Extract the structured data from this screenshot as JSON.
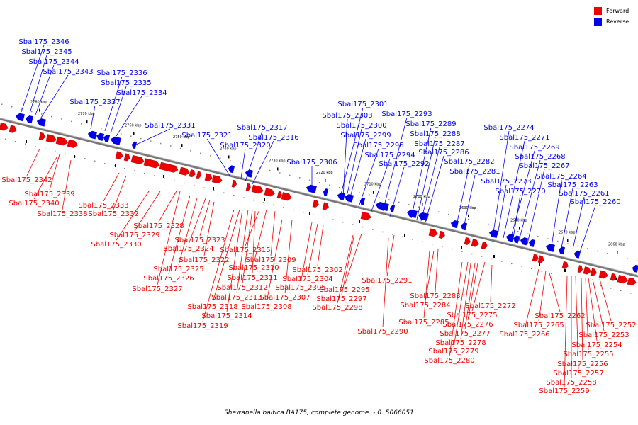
{
  "legend": {
    "forward": {
      "label": "Forward",
      "color": "#ee0000"
    },
    "reverse": {
      "label": "Reverse",
      "color": "#0000ee"
    }
  },
  "caption": "Shewanella baltica BA175, complete genome. - 0..5066051",
  "ticks": [
    "2780 kbp",
    "2770 kbp",
    "2760 kbp",
    "2750 kbp",
    "2740 kbp",
    "2730 kbp",
    "2720 kbp",
    "2710 kbp",
    "2700 kbp",
    "2690 kbp",
    "2680 kbp",
    "2670 kbp",
    "2660 kbp"
  ],
  "reverse_genes": [
    "Sbal175_2346",
    "Sbal175_2345",
    "Sbal175_2344",
    "Sbal175_2343",
    "Sbal175_2336",
    "Sbal175_2335",
    "Sbal175_2337",
    "Sbal175_2334",
    "Sbal175_2331",
    "Sbal175_2321",
    "Sbal175_2317",
    "Sbal175_2316",
    "Sbal175_2320",
    "Sbal175_2301",
    "Sbal175_2303",
    "Sbal175_2300",
    "Sbal175_2299",
    "Sbal175_2296",
    "Sbal175_2294",
    "Sbal175_2292",
    "Sbal175_2306",
    "Sbal175_2293",
    "Sbal175_2289",
    "Sbal175_2288",
    "Sbal175_2287",
    "Sbal175_2286",
    "Sbal175_2282",
    "Sbal175_2281",
    "Sbal175_2274",
    "Sbal175_2271",
    "Sbal175_2269",
    "Sbal175_2268",
    "Sbal175_2267",
    "Sbal175_2264",
    "Sbal175_2263",
    "Sbal175_2261",
    "Sbal175_2260",
    "Sbal175_2273",
    "Sbal175_2270"
  ],
  "forward_genes": [
    "Sbal175_2342",
    "Sbal175_2339",
    "Sbal175_2340",
    "Sbal175_2338",
    "Sbal175_2333",
    "Sbal175_2332",
    "Sbal175_2328",
    "Sbal175_2329",
    "Sbal175_2330",
    "Sbal175_2323",
    "Sbal175_2324",
    "Sbal175_2322",
    "Sbal175_2325",
    "Sbal175_2326",
    "Sbal175_2327",
    "Sbal175_2315",
    "Sbal175_2309",
    "Sbal175_2310",
    "Sbal175_2311",
    "Sbal175_2312",
    "Sbal175_2313",
    "Sbal175_2318",
    "Sbal175_2314",
    "Sbal175_2319",
    "Sbal175_2302",
    "Sbal175_2304",
    "Sbal175_2305",
    "Sbal175_2307",
    "Sbal175_2308",
    "Sbal175_2291",
    "Sbal175_2295",
    "Sbal175_2297",
    "Sbal175_2298",
    "Sbal175_2290",
    "Sbal175_2283",
    "Sbal175_2284",
    "Sbal175_2285",
    "Sbal175_2272",
    "Sbal175_2275",
    "Sbal175_2276",
    "Sbal175_2277",
    "Sbal175_2278",
    "Sbal175_2279",
    "Sbal175_2280",
    "Sbal175_2262",
    "Sbal175_2265",
    "Sbal175_2266",
    "Sbal175_2252",
    "Sbal175_2253",
    "Sbal175_2254",
    "Sbal175_2255",
    "Sbal175_2256",
    "Sbal175_2257",
    "Sbal175_2258",
    "Sbal175_2259"
  ]
}
